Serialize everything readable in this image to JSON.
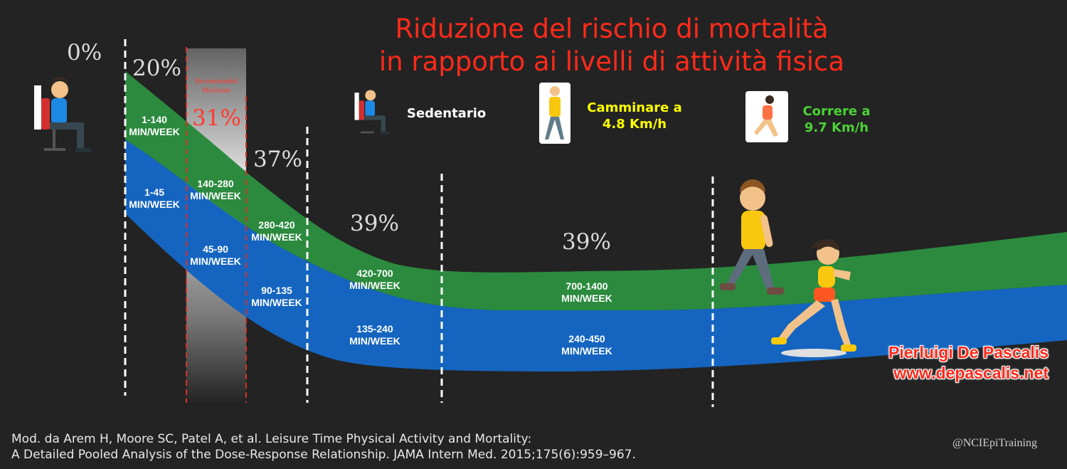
{
  "title_line1": "Riduzione del rischio di mortalità",
  "title_line2": "in rapporto ai livelli di attività fisica",
  "percentages": [
    "0%",
    "20%",
    "31%",
    "37%",
    "39%",
    "39%"
  ],
  "recommended_label_line1": "Recommended",
  "recommended_label_line2": "Minimum",
  "legend": {
    "sedentary": "Sedentario",
    "walking_line1": "Camminare a",
    "walking_line2": "4.8 Km/h",
    "running_line1": "Correre a",
    "running_line2": "9.7 Km/h"
  },
  "colors": {
    "background": "#232323",
    "title": "#ff2a1a",
    "green_band": "#2b8a3e",
    "blue_band": "#1565c0",
    "walking_text": "#ffff00",
    "running_text": "#4cd137",
    "recommended": "#ff3b30"
  },
  "chart_data": {
    "type": "area",
    "series": [
      {
        "name": "",
        "labels": [
          [
            "1-140",
            "MIN/WEEK"
          ],
          [
            "140-280",
            "MIN/WEEK"
          ],
          [
            "280-420",
            "MIN/WEEK"
          ],
          [
            "420-700",
            "MIN/WEEK"
          ],
          [
            "700-1400",
            "MIN/WEEK"
          ]
        ]
      },
      {
        "name": "",
        "labels": [
          [
            "1-45",
            "MIN/WEEK"
          ],
          [
            "45-90",
            "MIN/WEEK"
          ],
          [
            "90-135",
            "MIN/WEEK"
          ],
          [
            "135-240",
            "MIN/WEEK"
          ],
          [
            "240-450",
            "MIN/WEEK"
          ]
        ]
      }
    ],
    "risk_reduction_percent": [
      0,
      20,
      31,
      37,
      39,
      39
    ]
  },
  "credit_line1": "Pierluigi De Pascalis",
  "credit_line2": "www.depascalis.net",
  "source_line1": "Mod. da Arem H, Moore SC, Patel A, et al. Leisure Time Physical Activity and Mortality:",
  "source_line2": "A Detailed Pooled Analysis of the Dose-Response Relationship. JAMA Intern Med. 2015;175(6):959–967.",
  "handle": "@NCIEpiTraining"
}
